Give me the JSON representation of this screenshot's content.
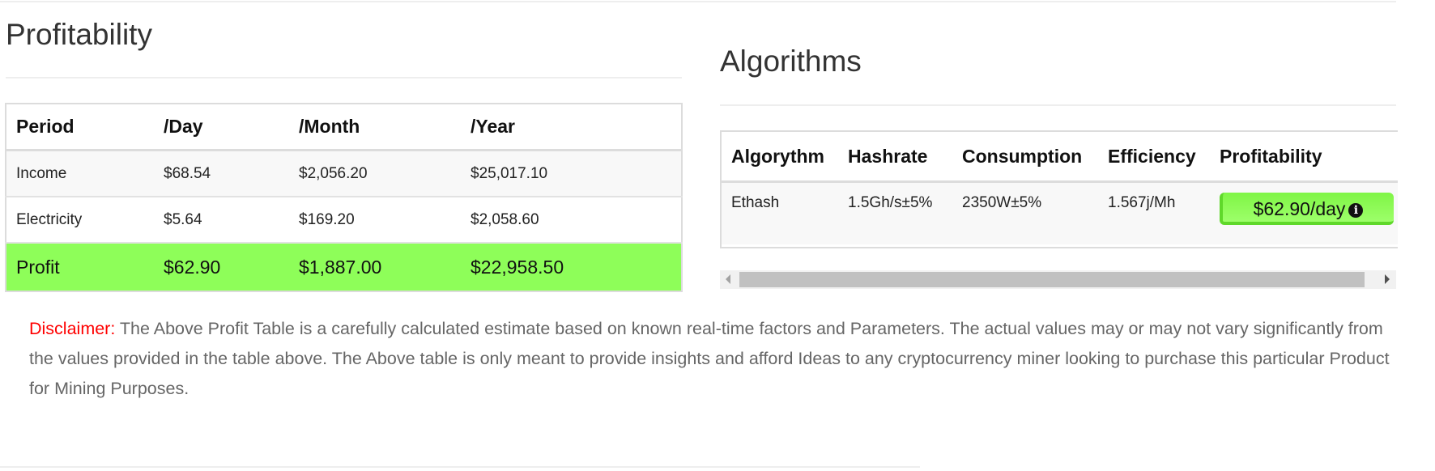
{
  "profitability": {
    "title": "Profitability",
    "headers": [
      "Period",
      "/Day",
      "/Month",
      "/Year"
    ],
    "rows": [
      [
        "Income",
        "$68.54",
        "$2,056.20",
        "$25,017.10"
      ],
      [
        "Electricity",
        "$5.64",
        "$169.20",
        "$2,058.60"
      ],
      [
        "Profit",
        "$62.90",
        "$1,887.00",
        "$22,958.50"
      ]
    ],
    "profit_row_color": "#8efe59"
  },
  "algorithms": {
    "title": "Algorithms",
    "headers": [
      "Algorythm",
      "Hashrate",
      "Consumption",
      "Efficiency",
      "Profitability"
    ],
    "rows": [
      {
        "algorithm": "Ethash",
        "hashrate": "1.5Gh/s±5%",
        "consumption": "2350W±5%",
        "efficiency": "1.567j/Mh",
        "profitability": "$62.90/day",
        "icon": "info-circle-icon"
      }
    ],
    "badge_color": "#8ef95a"
  },
  "disclaimer": {
    "label": "Disclaimer:",
    "text": " The Above Profit Table is a carefully calculated estimate based on known real-time factors and Parameters. The actual values may or may not vary significantly from the values provided in the table above. The Above table is only meant to provide insights and afford Ideas to any cryptocurrency miner looking to purchase this particular Product for Mining Purposes."
  }
}
